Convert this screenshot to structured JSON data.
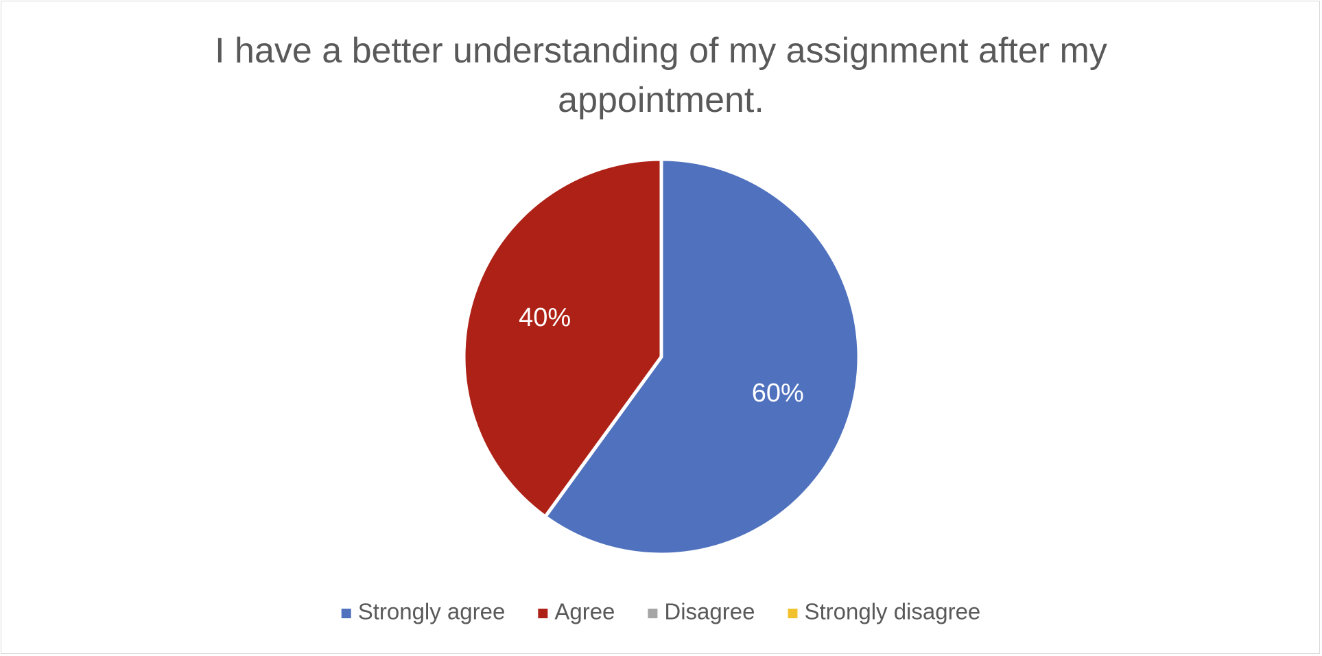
{
  "chart_data": {
    "type": "pie",
    "title": "I have a better understanding of my assignment after my appointment.",
    "categories": [
      "Strongly agree",
      "Agree",
      "Disagree",
      "Strongly disagree"
    ],
    "values": [
      60,
      40,
      0,
      0
    ],
    "value_labels": [
      "60%",
      "40%",
      null,
      null
    ],
    "colors": [
      "#4f71be",
      "#ae2116",
      "#a5a5a5",
      "#f2c12e"
    ],
    "legend": "bottom"
  }
}
